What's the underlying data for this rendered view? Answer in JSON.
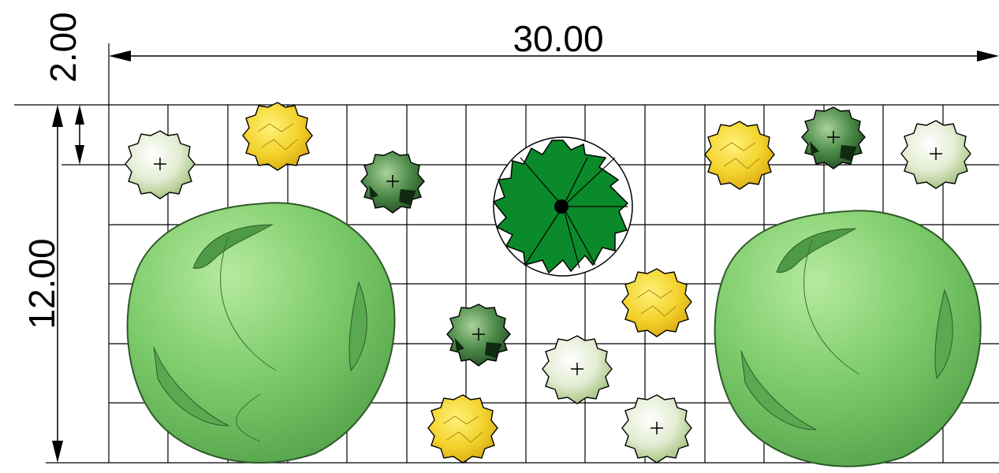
{
  "dimensions": {
    "width_label": "30.00",
    "height_label": "12.00",
    "offset_label": "2.00"
  },
  "colors": {
    "grid_line": "#000000",
    "large_shrub": "#7ccb6a",
    "evergreen_tree": "#0a8a2a",
    "yellow_shrub": "#f2d22a",
    "dark_shrub": "#3f7a3c",
    "pale_shrub": "#dde8c8"
  }
}
